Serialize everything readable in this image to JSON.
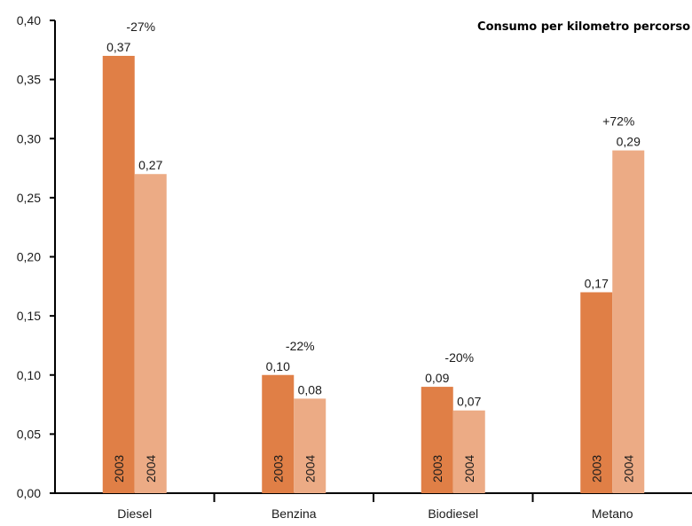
{
  "chart_data": {
    "type": "bar",
    "title": "Consumo per kilometro percorso",
    "xlabel": "",
    "ylabel": "",
    "ylim": [
      0,
      0.4
    ],
    "yticks": [
      "0,00",
      "0,05",
      "0,10",
      "0,15",
      "0,20",
      "0,25",
      "0,30",
      "0,35",
      "0,40"
    ],
    "categories": [
      "Diesel",
      "Benzina",
      "Biodiesel",
      "Metano"
    ],
    "series": [
      {
        "name": "2003",
        "color": "#e07f46",
        "values": [
          0.37,
          0.1,
          0.09,
          0.17
        ],
        "value_labels": [
          "0,37",
          "0,10",
          "0,09",
          "0,17"
        ]
      },
      {
        "name": "2004",
        "color": "#ecab85",
        "values": [
          0.27,
          0.08,
          0.07,
          0.29
        ],
        "value_labels": [
          "0,27",
          "0,08",
          "0,07",
          "0,29"
        ]
      }
    ],
    "change_labels": [
      "-27%",
      "-22%",
      "-20%",
      "+72%"
    ],
    "grid": false,
    "legend": "none"
  }
}
